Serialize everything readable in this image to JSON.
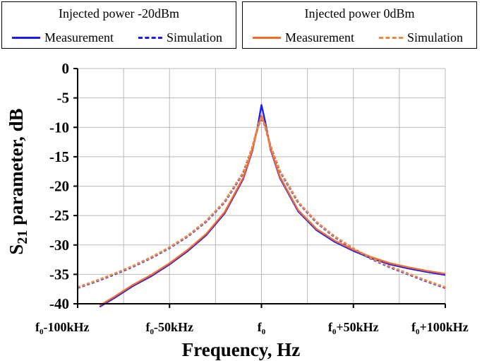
{
  "legend": [
    {
      "title": "Injected power -20dBm",
      "entries": [
        {
          "label": "Measurement",
          "style": "solid",
          "color": "#1a1aff"
        },
        {
          "label": "Simulation",
          "style": "dashed",
          "color": "#1a1aff"
        }
      ]
    },
    {
      "title": "Injected power 0dBm",
      "entries": [
        {
          "label": "Measurement",
          "style": "solid",
          "color": "#f26b2a"
        },
        {
          "label": "Simulation",
          "style": "dashed",
          "color": "#f0883e"
        }
      ]
    }
  ],
  "chart_data": {
    "type": "line",
    "xlabel": "Frequency, Hz",
    "ylabel_main": "S",
    "ylabel_sub": "21",
    "ylabel_rest": " parameter, dB",
    "xlim": [
      -100,
      100
    ],
    "ylim": [
      -40,
      0
    ],
    "x_unit": "kHz offset from f0",
    "xticks": [
      {
        "value": -100,
        "base": "f",
        "sub": "0",
        "rest": "-100kHz"
      },
      {
        "value": -50,
        "base": "f",
        "sub": "0",
        "rest": "-50kHz"
      },
      {
        "value": 0,
        "base": "f",
        "sub": "0",
        "rest": ""
      },
      {
        "value": 50,
        "base": "f",
        "sub": "0",
        "rest": "+50kHz"
      },
      {
        "value": 100,
        "base": "f",
        "sub": "0",
        "rest": "+100kHz"
      }
    ],
    "yticks": [
      0,
      -5,
      -10,
      -15,
      -20,
      -25,
      -30,
      -35,
      -40
    ],
    "grid": true,
    "series": [
      {
        "name": "Injected power -20dBm Measurement",
        "color": "#1a1aff",
        "dash": false,
        "x": [
          -88,
          -80,
          -70,
          -60,
          -50,
          -40,
          -30,
          -20,
          -10,
          -5,
          -2,
          0,
          2,
          5,
          10,
          20,
          30,
          40,
          50,
          60,
          70,
          80,
          90,
          100
        ],
        "y": [
          -40.5,
          -39.0,
          -37.0,
          -35.3,
          -33.3,
          -31.0,
          -28.3,
          -24.6,
          -18.8,
          -14.0,
          -9.8,
          -6.2,
          -9.0,
          -13.8,
          -18.6,
          -24.3,
          -27.5,
          -29.5,
          -31.0,
          -32.3,
          -33.3,
          -34.0,
          -34.6,
          -35.1
        ]
      },
      {
        "name": "Injected power -20dBm Simulation",
        "color": "#1a1aff",
        "dash": true,
        "x": [
          -100,
          -90,
          -80,
          -70,
          -60,
          -50,
          -40,
          -30,
          -20,
          -10,
          -5,
          -2,
          0,
          2,
          5,
          10,
          20,
          30,
          40,
          50,
          60,
          70,
          80,
          90,
          100
        ],
        "y": [
          -37.3,
          -36.2,
          -35.0,
          -33.7,
          -32.2,
          -30.5,
          -28.5,
          -26.0,
          -22.7,
          -17.8,
          -13.5,
          -10.0,
          -8.3,
          -9.8,
          -13.3,
          -17.5,
          -22.8,
          -26.2,
          -28.7,
          -30.7,
          -32.4,
          -33.8,
          -35.0,
          -36.2,
          -37.3
        ]
      },
      {
        "name": "Injected power 0dBm Measurement",
        "color": "#f26b2a",
        "dash": false,
        "x": [
          -88,
          -80,
          -70,
          -60,
          -50,
          -40,
          -30,
          -20,
          -10,
          -5,
          -2,
          0,
          2,
          5,
          10,
          20,
          30,
          40,
          50,
          60,
          70,
          80,
          90,
          100
        ],
        "y": [
          -40.3,
          -38.8,
          -36.8,
          -35.1,
          -33.1,
          -30.8,
          -28.1,
          -24.4,
          -18.6,
          -13.8,
          -10.0,
          -8.0,
          -9.6,
          -13.6,
          -18.4,
          -24.1,
          -27.3,
          -29.3,
          -30.8,
          -32.1,
          -33.1,
          -33.8,
          -34.4,
          -34.9
        ]
      },
      {
        "name": "Injected power 0dBm Simulation",
        "color": "#f0883e",
        "dash": true,
        "x": [
          -100,
          -90,
          -80,
          -70,
          -60,
          -50,
          -40,
          -30,
          -20,
          -10,
          -5,
          -2,
          0,
          2,
          5,
          10,
          20,
          30,
          40,
          50,
          60,
          70,
          80,
          90,
          100
        ],
        "y": [
          -37.2,
          -36.1,
          -34.9,
          -33.6,
          -32.1,
          -30.4,
          -28.4,
          -25.9,
          -22.6,
          -17.7,
          -13.4,
          -9.9,
          -8.2,
          -9.7,
          -13.2,
          -17.4,
          -22.7,
          -26.1,
          -28.6,
          -30.6,
          -32.3,
          -33.7,
          -34.9,
          -36.1,
          -37.2
        ]
      }
    ]
  }
}
